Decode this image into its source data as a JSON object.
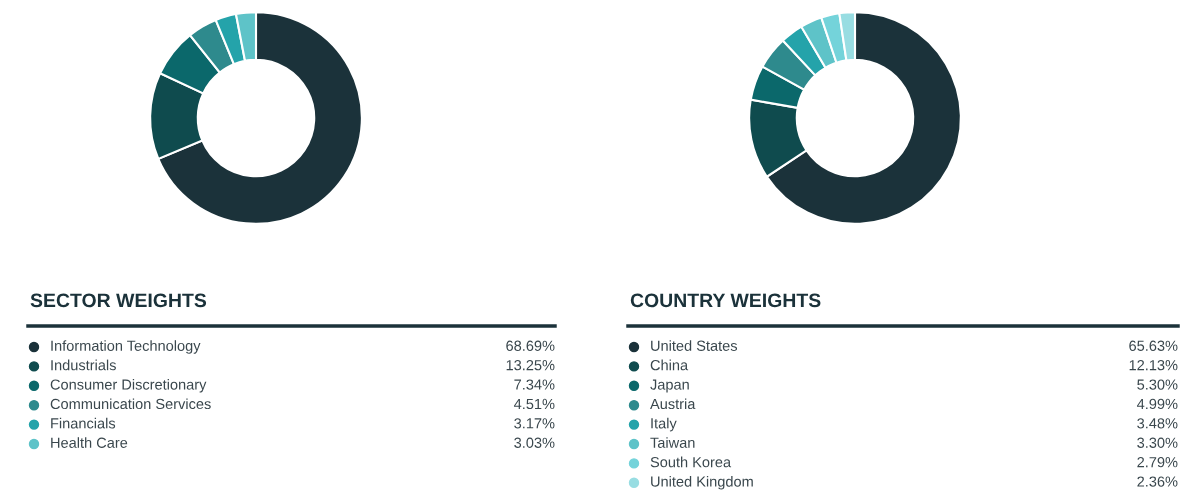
{
  "chart_data": [
    {
      "type": "donut",
      "title": "SECTOR WEIGHTS",
      "legend": "bottom",
      "categories": [
        "Information Technology",
        "Industrials",
        "Consumer Discretionary",
        "Communication Services",
        "Financials",
        "Health Care"
      ],
      "values": [
        68.69,
        13.25,
        7.34,
        4.51,
        3.17,
        3.03
      ],
      "value_labels": [
        "68.69%",
        "13.25%",
        "7.34%",
        "4.51%",
        "3.17%",
        "3.03%"
      ],
      "colors": [
        "#1b323a",
        "#0f4b4e",
        "#0b686b",
        "#2e8a8d",
        "#24a3aa",
        "#5ec3c8"
      ]
    },
    {
      "type": "donut",
      "title": "COUNTRY WEIGHTS",
      "legend": "bottom",
      "categories": [
        "United States",
        "China",
        "Japan",
        "Austria",
        "Italy",
        "Taiwan",
        "South Korea",
        "United Kingdom"
      ],
      "values": [
        65.63,
        12.13,
        5.3,
        4.99,
        3.48,
        3.3,
        2.79,
        2.36
      ],
      "value_labels": [
        "65.63%",
        "12.13%",
        "5.30%",
        "4.99%",
        "3.48%",
        "3.30%",
        "2.79%",
        "2.36%"
      ],
      "colors": [
        "#1b323a",
        "#0f4b4e",
        "#0b686b",
        "#2e8a8d",
        "#24a3aa",
        "#5ec3c8",
        "#74d3da",
        "#98dde2"
      ]
    }
  ]
}
